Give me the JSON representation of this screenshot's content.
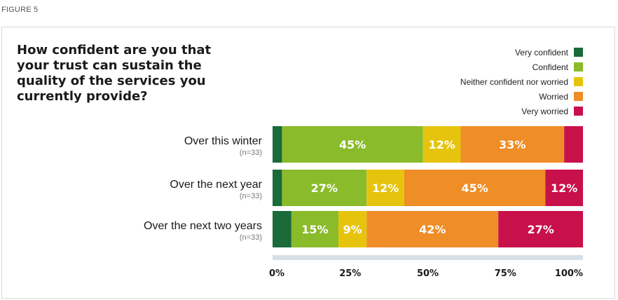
{
  "figure_label": "FIGURE 5",
  "chart_data": {
    "type": "bar",
    "orientation": "horizontal",
    "stacked": true,
    "title": "How confident are you that your trust can sustain the quality of the services you currently provide?",
    "categories": [
      "Over this winter",
      "Over the next year",
      "Over the next two years"
    ],
    "sample_sizes": [
      "(n=33)",
      "(n=33)",
      "(n=33)"
    ],
    "series": [
      {
        "name": "Very confident",
        "color": "#1a6a3a",
        "values": [
          3,
          3,
          6
        ]
      },
      {
        "name": "Confident",
        "color": "#8abb2a",
        "values": [
          45,
          27,
          15
        ]
      },
      {
        "name": "Neither confident nor worried",
        "color": "#e6c40e",
        "values": [
          12,
          12,
          9
        ]
      },
      {
        "name": "Worried",
        "color": "#ef8d26",
        "values": [
          33,
          45,
          42
        ]
      },
      {
        "name": "Very worried",
        "color": "#c8104a",
        "values": [
          6,
          12,
          27
        ]
      }
    ],
    "data_labels": [
      [
        "",
        "45%",
        "12%",
        "33%",
        ""
      ],
      [
        "",
        "27%",
        "12%",
        "45%",
        "12%"
      ],
      [
        "",
        "15%",
        "9%",
        "42%",
        "27%"
      ]
    ],
    "xlim": [
      0,
      100
    ],
    "x_ticks": [
      "0%",
      "25%",
      "50%",
      "75%",
      "100%"
    ],
    "legend_position": "top-right",
    "grid": false
  }
}
